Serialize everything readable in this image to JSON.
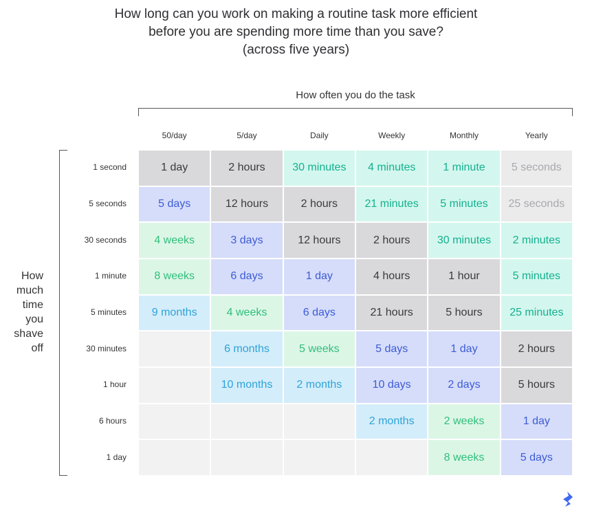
{
  "title": [
    "How long can you work on making a routine task more efficient",
    "before you are spending more time than you save?",
    "(across five years)"
  ],
  "column_axis_label": "How often you do the task",
  "row_axis_label": "How much time you shave off",
  "columns": [
    "50/day",
    "5/day",
    "Daily",
    "Weekly",
    "Monthly",
    "Yearly"
  ],
  "rows": [
    "1 second",
    "5 seconds",
    "30 seconds",
    "1 minute",
    "5 minutes",
    "30 minutes",
    "1 hour",
    "6 hours",
    "1 day"
  ],
  "cells": [
    [
      "1 day",
      "2 hours",
      "30 minutes",
      "4 minutes",
      "1 minute",
      "5 seconds"
    ],
    [
      "5 days",
      "12 hours",
      "2 hours",
      "21 minutes",
      "5 minutes",
      "25 seconds"
    ],
    [
      "4 weeks",
      "3 days",
      "12 hours",
      "2 hours",
      "30 minutes",
      "2 minutes"
    ],
    [
      "8 weeks",
      "6 days",
      "1 day",
      "4 hours",
      "1 hour",
      "5 minutes"
    ],
    [
      "9 months",
      "4 weeks",
      "6 days",
      "21 hours",
      "5 hours",
      "25 minutes"
    ],
    [
      null,
      "6 months",
      "5 weeks",
      "5 days",
      "1 day",
      "2 hours"
    ],
    [
      null,
      "10 months",
      "2 months",
      "10 days",
      "2 days",
      "5 hours"
    ],
    [
      null,
      null,
      null,
      "2 months",
      "2 weeks",
      "1 day"
    ],
    [
      null,
      null,
      null,
      null,
      "8 weeks",
      "5 days"
    ]
  ],
  "cell_tones": [
    [
      "gray",
      "gray",
      "mint",
      "mint",
      "mint",
      "light"
    ],
    [
      "blue",
      "gray",
      "gray",
      "mint",
      "mint",
      "light"
    ],
    [
      "green",
      "blue",
      "gray",
      "gray",
      "mint",
      "mint"
    ],
    [
      "green",
      "blue",
      "blue",
      "gray",
      "gray",
      "mint"
    ],
    [
      "cyan",
      "green",
      "blue",
      "gray",
      "gray",
      "mint"
    ],
    [
      null,
      "cyan",
      "green",
      "blue",
      "blue",
      "gray"
    ],
    [
      null,
      "cyan",
      "cyan",
      "blue",
      "blue",
      "gray"
    ],
    [
      null,
      null,
      null,
      "cyan",
      "green",
      "blue"
    ],
    [
      null,
      null,
      null,
      null,
      "green",
      "blue"
    ]
  ],
  "tones": {
    "gray": {
      "fill": "#d9d9dc",
      "text": "#3a3a3d"
    },
    "blue": {
      "fill": "#d6ddfa",
      "text": "#3d5bd6"
    },
    "green": {
      "fill": "#dcf6e6",
      "text": "#2fbf7b"
    },
    "cyan": {
      "fill": "#d4edfa",
      "text": "#2ea3d8"
    },
    "mint": {
      "fill": "#d3f7ee",
      "text": "#14b08f"
    },
    "light": {
      "fill": "#ebebec",
      "text": "#a9a9ad"
    }
  }
}
